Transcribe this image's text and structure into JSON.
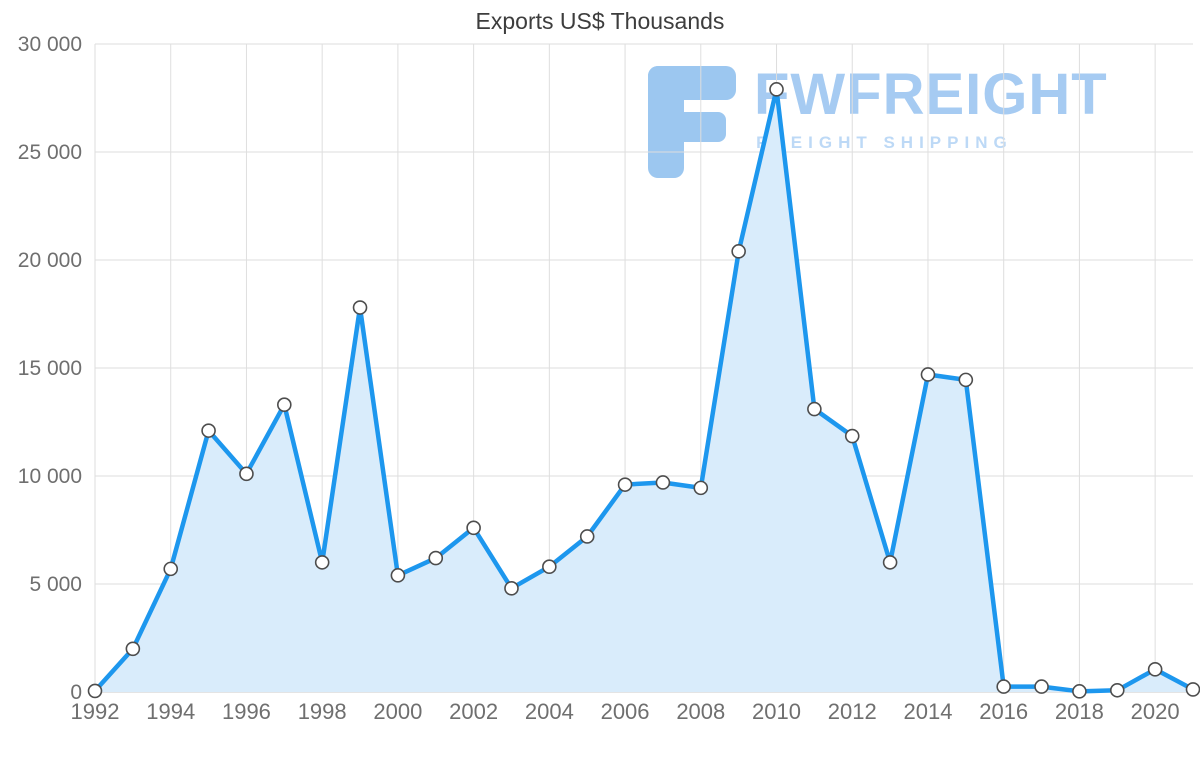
{
  "title": "Exports US$ Thousands",
  "watermark": {
    "brand": "FWFREIGHT",
    "tagline": "FREIGHT SHIPPING"
  },
  "colors": {
    "line": "#1d97ee",
    "area_fill": "#d9ecfb",
    "marker_fill": "#ffffff",
    "marker_stroke": "#4d4d4d",
    "gridline": "#dedede",
    "baseline": "#c8c8c8",
    "axis_text": "#6f6f6f",
    "title_text": "#3d3d3d",
    "watermark_blue": "#a6cbf2"
  },
  "chart_data": {
    "type": "area",
    "title": "Exports US$ Thousands",
    "xlabel": "",
    "ylabel": "",
    "x": [
      1992,
      1993,
      1994,
      1995,
      1996,
      1997,
      1998,
      1999,
      2000,
      2001,
      2002,
      2003,
      2004,
      2005,
      2006,
      2007,
      2008,
      2009,
      2010,
      2011,
      2012,
      2013,
      2014,
      2015,
      2016,
      2017,
      2018,
      2019,
      2020,
      2021
    ],
    "series": [
      {
        "name": "Exports US$ Thousands",
        "values": [
          50,
          2000,
          5700,
          12100,
          10100,
          13300,
          6000,
          17800,
          5400,
          6200,
          7600,
          4800,
          5800,
          7200,
          9600,
          9700,
          9450,
          20400,
          27900,
          13100,
          11850,
          6000,
          14700,
          14450,
          250,
          250,
          30,
          80,
          1050,
          120
        ]
      }
    ],
    "ylim": [
      0,
      30000
    ],
    "xlim": [
      1992,
      2021
    ],
    "yticks": [
      0,
      5000,
      10000,
      15000,
      20000,
      25000,
      30000
    ],
    "ytick_labels": [
      "0",
      "5 000",
      "10 000",
      "15 000",
      "20 000",
      "25 000",
      "30 000"
    ],
    "xticks": [
      1992,
      1994,
      1996,
      1998,
      2000,
      2002,
      2004,
      2006,
      2008,
      2010,
      2012,
      2014,
      2016,
      2018,
      2020
    ],
    "grid": true,
    "legend_position": "none",
    "marker_style": "open-circle"
  }
}
